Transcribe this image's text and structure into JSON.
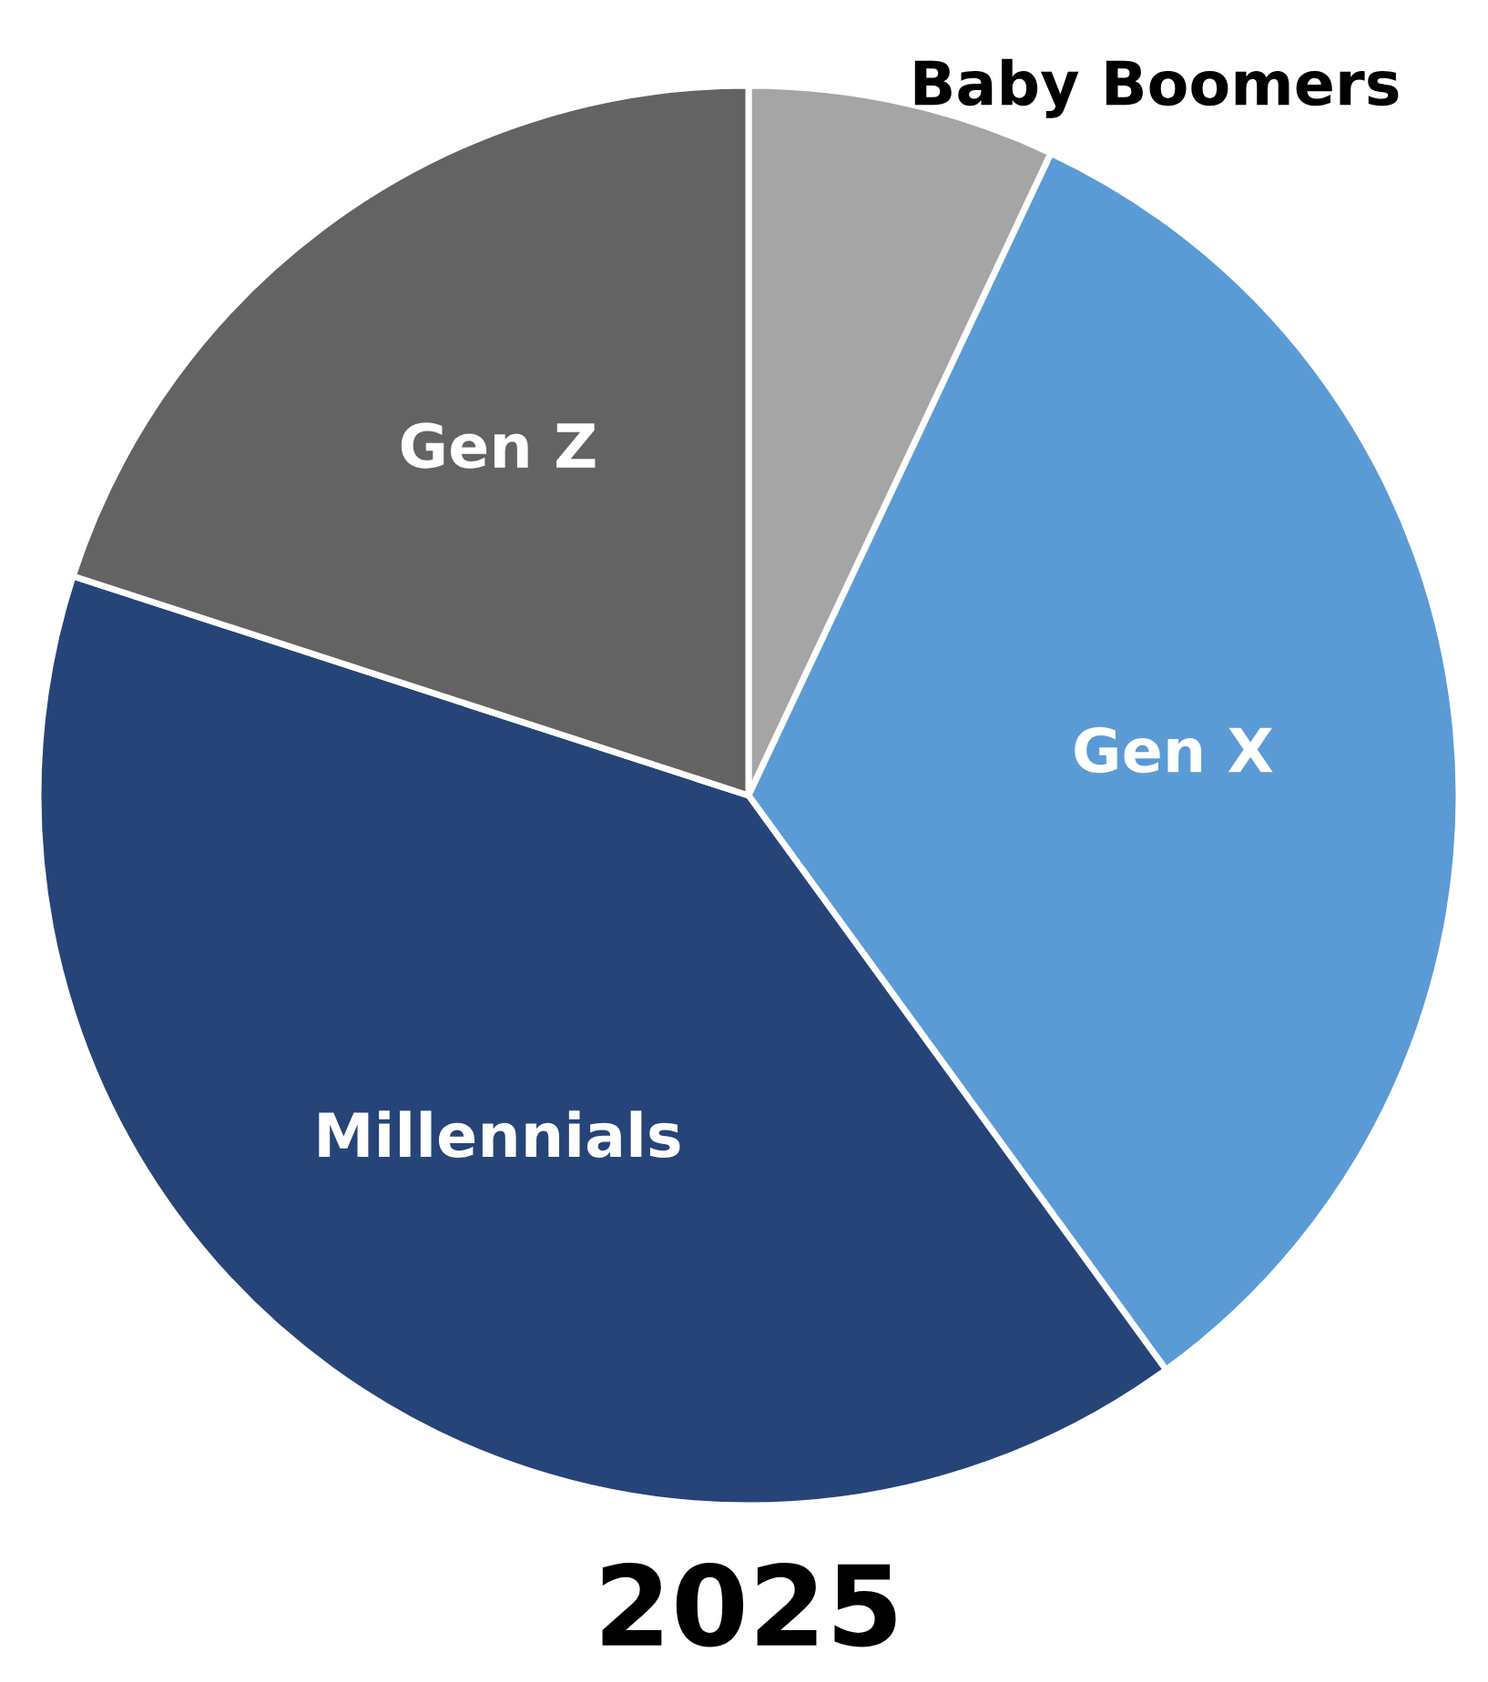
{
  "chart_data": {
    "type": "pie",
    "title": "2025",
    "categories": [
      "Baby Boomers",
      "Gen X",
      "Millennials",
      "Gen Z"
    ],
    "values": [
      7,
      33,
      40,
      20
    ],
    "colors": [
      "#a5a5a5",
      "#5b9bd5",
      "#264478",
      "#636363"
    ]
  }
}
